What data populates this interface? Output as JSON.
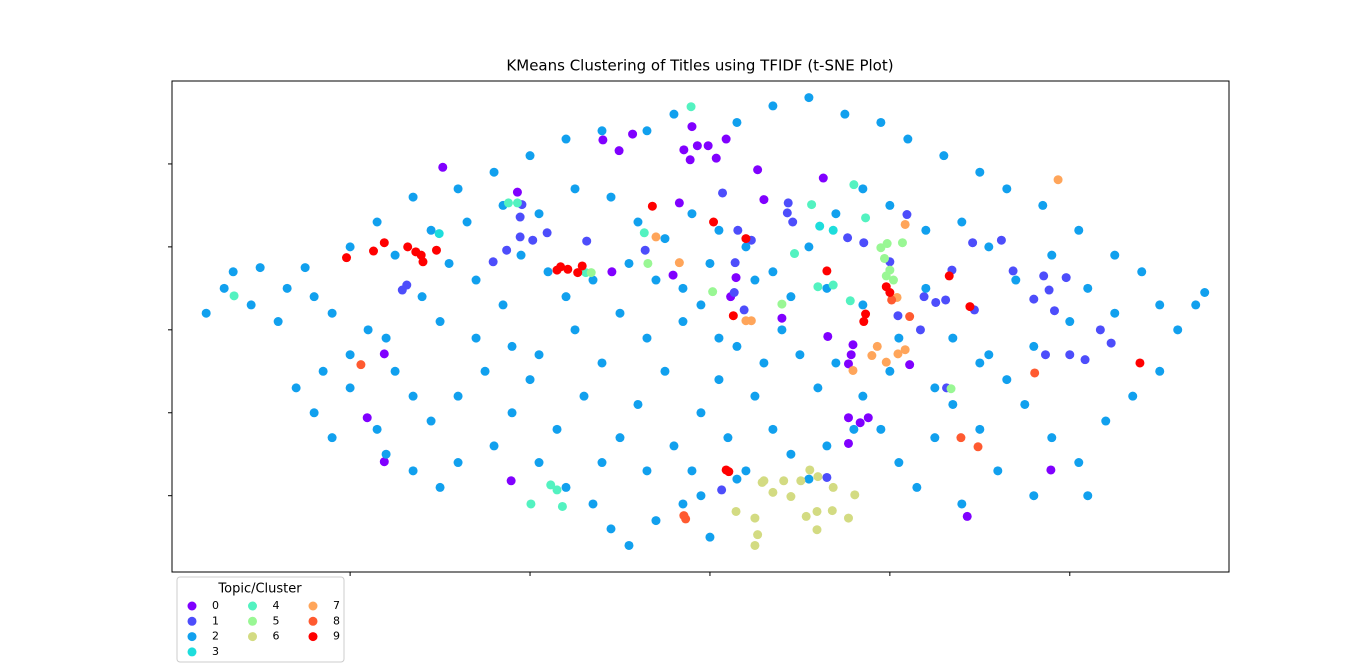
{
  "chart_data": {
    "type": "scatter",
    "title": "KMeans Clustering of Titles using TFIDF (t-SNE Plot)",
    "legend_title": "Topic/Cluster",
    "legend_position": "lower left outside",
    "xlim": [
      -59.8,
      57.7
    ],
    "ylim": [
      -29.2,
      30.0
    ],
    "xticks": [
      -40,
      -20,
      0,
      20,
      40
    ],
    "yticks": [
      -20,
      -10,
      0,
      10,
      20
    ],
    "series": [
      {
        "name": "0",
        "color": "#8000ff",
        "x": [
          -11.9,
          -8.6,
          -10.1,
          -2.0,
          -2.9,
          -1.4,
          -0.2,
          1.8,
          -2.2,
          0.7,
          5.3,
          -29.7,
          -21.4,
          -3.4,
          6.0,
          12.6,
          -10.9,
          -4.1,
          2.9,
          2.3,
          13.1,
          15.9,
          15.7,
          15.4,
          22.2,
          -36.2,
          -38.1,
          -36.2,
          -22.1,
          15.4,
          16.7,
          17.6,
          15.4,
          28.6,
          37.9,
          8.0
        ],
        "values": [
          22.9,
          23.6,
          21.6,
          24.5,
          21.7,
          22.2,
          22.2,
          23.0,
          20.5,
          20.7,
          19.3,
          19.6,
          16.6,
          15.3,
          15.7,
          18.3,
          7.0,
          6.6,
          6.3,
          4.0,
          -0.8,
          -1.8,
          -3.0,
          -4.1,
          -4.2,
          -2.9,
          -10.6,
          -15.9,
          -18.2,
          -10.6,
          -11.2,
          -10.6,
          -13.7,
          -22.5,
          -16.9,
          1.4
        ]
      },
      {
        "name": "1",
        "color": "#4d4dfb",
        "x": [
          1.4,
          3.1,
          4.6,
          8.7,
          9.2,
          15.3,
          17.1,
          20.0,
          8.6,
          -24.1,
          -22.6,
          -21.1,
          -19.7,
          -18.1,
          -21.1,
          -20.9,
          -13.7,
          -7.2,
          2.8,
          2.7,
          3.8,
          29.2,
          33.7,
          37.1,
          39.6,
          36.0,
          37.7,
          38.3,
          40.0,
          41.7,
          43.4,
          44.6,
          37.3,
          23.8,
          25.1,
          26.2,
          23.4,
          20.9,
          29.4,
          13.0,
          1.3,
          -34.2,
          -33.7,
          26.3,
          32.4,
          21.9,
          26.9
        ],
        "values": [
          16.5,
          12.0,
          10.8,
          15.3,
          13.0,
          11.1,
          10.5,
          8.2,
          14.1,
          8.2,
          9.6,
          11.2,
          10.8,
          11.7,
          13.6,
          15.1,
          10.7,
          9.6,
          8.1,
          4.5,
          2.4,
          10.5,
          7.1,
          6.5,
          6.3,
          3.7,
          4.8,
          2.3,
          -3.0,
          -3.6,
          0.0,
          -1.6,
          -3.0,
          4.0,
          3.3,
          3.6,
          0.0,
          1.7,
          2.4,
          -17.8,
          -19.3,
          4.8,
          5.4,
          -7.0,
          10.8,
          13.9,
          7.2
        ]
      },
      {
        "name": "2",
        "color": "#11a0ee",
        "x": [
          -54,
          -53,
          -56,
          -51,
          -50,
          -48,
          -47,
          -45,
          -44,
          -42,
          -43,
          -40,
          -46,
          -44,
          -40,
          -38,
          -36,
          -35,
          -33,
          -37,
          -42,
          -36,
          -33,
          -30,
          -28,
          -31,
          -28,
          -25,
          -26,
          -30,
          -32,
          -29,
          -26,
          -23,
          -22,
          -20,
          -22,
          -24,
          -19,
          -16,
          -13,
          -11,
          -9,
          -6,
          -3,
          0,
          -17,
          -14,
          -12,
          -15,
          -10,
          -7,
          -5,
          -8,
          -10,
          -4,
          -1,
          1,
          3,
          5,
          7,
          9,
          11,
          4,
          2,
          -2,
          6,
          8,
          10,
          12,
          14,
          17,
          19,
          21,
          23,
          25,
          27,
          30,
          32,
          33,
          35,
          38,
          41,
          44,
          47,
          50,
          52,
          54,
          55,
          50,
          48,
          45,
          41,
          37,
          33,
          30,
          26,
          22,
          19,
          15,
          11,
          7,
          3,
          -4,
          -7,
          -12,
          -16,
          -20,
          -24,
          -28,
          -33,
          -37,
          -40,
          -35,
          -31,
          -27,
          -23,
          -19,
          -15,
          -11,
          -8,
          -5,
          -2,
          1,
          4,
          7,
          11,
          14,
          17,
          20,
          24,
          28,
          31,
          34,
          38,
          42,
          45,
          40,
          36,
          31,
          27,
          24,
          21,
          17,
          13,
          9,
          5,
          0,
          -3,
          -6,
          -9,
          -13,
          -18,
          -21,
          -16,
          -19,
          -12,
          -7,
          -1,
          3,
          16,
          13,
          28,
          36,
          42,
          -3,
          1,
          -1,
          20,
          25,
          30
        ],
        "values": [
          5,
          7,
          2,
          3,
          7.5,
          1,
          5,
          7.5,
          4,
          2,
          -5,
          -7,
          -7,
          -10,
          -3,
          0,
          -1,
          -5,
          -8,
          -12,
          -13,
          -15,
          -17,
          -19,
          -16,
          -11,
          -8,
          -5,
          -1,
          1,
          4,
          8,
          6,
          3,
          -2,
          -6,
          -10,
          -14,
          -16,
          -19,
          -21,
          -24,
          -26,
          -23,
          -21,
          -25,
          -12,
          -8,
          -4,
          0,
          2,
          -1,
          -5,
          -9,
          -13,
          -14,
          -10,
          -6,
          -2,
          -8,
          -12,
          -15,
          -18,
          -17,
          -13,
          -17,
          -4,
          0,
          -3,
          -7,
          -4,
          -8,
          -12,
          -16,
          -19,
          -13,
          -9,
          -12,
          -17,
          -6,
          -9,
          -13,
          -16,
          -11,
          -8,
          -5,
          0,
          3,
          4.5,
          3,
          7,
          9,
          12,
          15,
          17,
          19,
          21,
          23,
          25,
          26,
          28,
          27,
          25,
          26,
          24,
          24,
          23,
          21,
          19,
          17,
          16,
          13,
          10,
          9,
          12,
          13,
          15,
          14,
          17,
          16,
          13,
          11,
          14,
          12,
          10,
          7,
          10,
          14,
          17,
          15,
          12,
          13,
          10,
          6,
          9,
          5,
          2,
          1,
          -2,
          -3,
          -1,
          5,
          -1,
          3,
          5,
          4,
          6,
          8,
          5,
          6,
          8,
          6,
          7,
          9,
          4,
          -3,
          -16,
          -17,
          -20,
          -18,
          -12,
          -14,
          -21,
          -20,
          -20,
          1,
          -1,
          3,
          -5,
          -7,
          -4
        ]
      },
      {
        "name": "3",
        "color": "#1ddddc",
        "x": [
          12.2,
          13.7,
          -30.1
        ],
        "values": [
          12.5,
          12.0,
          11.6
        ]
      },
      {
        "name": "4",
        "color": "#53f2c0",
        "x": [
          -2.1,
          -21.4,
          -22.4,
          -13.8,
          -7.3,
          11.3,
          16.0,
          17.3,
          12.0,
          13.7,
          15.6,
          -17.7,
          -17.0,
          -19.9,
          -16.4,
          -52.9,
          9.4
        ],
        "values": [
          26.9,
          15.3,
          15.3,
          6.9,
          11.7,
          15.1,
          17.5,
          13.5,
          5.2,
          5.4,
          3.5,
          -18.7,
          -19.3,
          -21.0,
          -21.3,
          4.1,
          9.2
        ]
      },
      {
        "name": "5",
        "color": "#99f794",
        "x": [
          19.0,
          19.7,
          21.4,
          19.4,
          20.0,
          19.6,
          20.4,
          8.0,
          -6.9,
          0.3,
          -13.2,
          26.8
        ],
        "values": [
          9.9,
          10.4,
          10.5,
          8.6,
          7.2,
          6.5,
          6.0,
          3.1,
          8.0,
          4.6,
          6.9,
          -7.1
        ]
      },
      {
        "name": "6",
        "color": "#d3db82",
        "x": [
          6.0,
          8.2,
          10.1,
          12.0,
          11.1,
          13.7,
          16.1,
          7.0,
          9.0,
          2.9,
          5.0,
          10.7,
          11.9,
          13.6,
          15.4,
          5.3,
          11.9,
          5.0,
          5.8
        ],
        "values": [
          -18.2,
          -18.2,
          -18.2,
          -17.7,
          -16.9,
          -19.0,
          -19.9,
          -19.6,
          -20.1,
          -21.9,
          -22.7,
          -22.5,
          -21.9,
          -21.8,
          -22.7,
          -24.7,
          -24.1,
          -26.0,
          -18.4
        ]
      },
      {
        "name": "7",
        "color": "#ffa55a",
        "x": [
          38.7,
          21.7,
          -3.4,
          4.6,
          4.0,
          18.0,
          18.6,
          19.6,
          20.9,
          21.7,
          15.9,
          20.8,
          -6.0
        ],
        "values": [
          18.1,
          12.7,
          8.1,
          1.1,
          1.1,
          -3.1,
          -2.0,
          -3.9,
          -2.9,
          -2.4,
          -4.9,
          3.9,
          11.2
        ]
      },
      {
        "name": "8",
        "color": "#ff5a30",
        "x": [
          -38.8,
          -2.9,
          -2.7,
          27.9,
          29.8,
          36.1,
          22.2,
          20.2
        ],
        "values": [
          -4.2,
          -22.4,
          -22.8,
          -13.0,
          -14.1,
          -5.2,
          1.6,
          3.6
        ]
      },
      {
        "name": "9",
        "color": "#ff0000",
        "x": [
          -40.4,
          -37.4,
          -36.2,
          -33.6,
          -32.7,
          -32.1,
          -31.9,
          -30.4,
          -17.0,
          -16.6,
          -15.8,
          -14.7,
          -14.2,
          -6.4,
          0.4,
          4.0,
          13.0,
          19.6,
          20.0,
          17.3,
          17.1,
          2.6,
          26.6,
          28.9,
          47.8,
          1.8,
          2.1
        ],
        "values": [
          8.7,
          9.5,
          10.5,
          10.0,
          9.4,
          9.0,
          8.2,
          9.6,
          7.2,
          7.6,
          7.3,
          6.9,
          7.7,
          14.9,
          13.0,
          11.0,
          7.1,
          5.2,
          4.5,
          1.9,
          1.0,
          1.7,
          6.5,
          2.8,
          -4.0,
          -16.9,
          -17.1
        ]
      }
    ]
  }
}
